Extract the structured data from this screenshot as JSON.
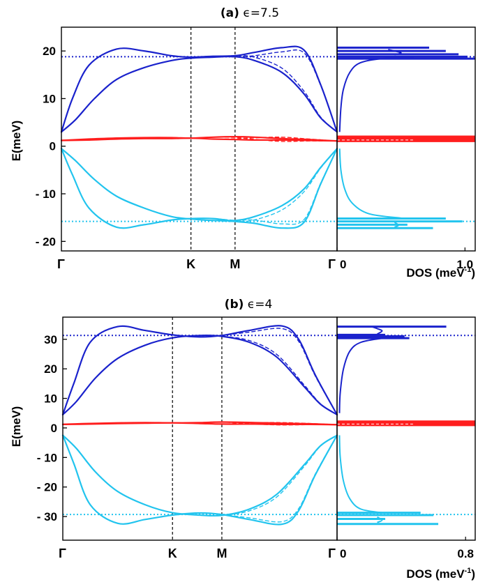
{
  "colors": {
    "upper_band": "#1a22cc",
    "flat_band": "#ff1e1e",
    "lower_band": "#22c4ee",
    "vline": "#000000"
  },
  "chart_data": [
    {
      "type": "line",
      "title_label": "(a)",
      "title_rest": " ϵ=7.5",
      "ylabel": "E(meV)",
      "ylim": [
        -22,
        25
      ],
      "yticks": [
        20,
        10,
        0,
        -10,
        -20
      ],
      "ytick_labels": [
        "20",
        "10",
        "0",
        "- 10",
        "- 20"
      ],
      "x_ticks": [
        {
          "pos": 0,
          "label": "Γ"
        },
        {
          "pos": 0.47,
          "label": "K"
        },
        {
          "pos": 0.63,
          "label": "M"
        },
        {
          "pos": 1,
          "label": "Γ"
        }
      ],
      "reference_levels": {
        "upper": 18.8,
        "lower": -15.8
      },
      "series": [
        {
          "band": "upper",
          "x": [
            0,
            0.04,
            0.1,
            0.2,
            0.3,
            0.4,
            0.47,
            0.55,
            0.63,
            0.7,
            0.8,
            0.88,
            0.94,
            1
          ],
          "y": [
            3,
            10,
            17,
            20.4,
            20,
            19,
            18.7,
            18.9,
            19,
            19.7,
            20.7,
            20.2,
            13,
            3
          ]
        },
        {
          "band": "upper",
          "x": [
            0,
            0.05,
            0.12,
            0.2,
            0.3,
            0.4,
            0.47,
            0.55,
            0.63,
            0.7,
            0.8,
            0.88,
            0.94,
            1
          ],
          "y": [
            3,
            5.5,
            10,
            14,
            16.5,
            18,
            18.5,
            18.7,
            18.8,
            18,
            15.5,
            11,
            6,
            3
          ]
        },
        {
          "band": "flat",
          "x": [
            0,
            0.1,
            0.2,
            0.3,
            0.4,
            0.47,
            0.55,
            0.63,
            0.7,
            0.8,
            0.9,
            1
          ],
          "y": [
            1.2,
            1.5,
            1.7,
            1.8,
            1.8,
            1.7,
            1.9,
            2,
            1.9,
            1.6,
            1.4,
            1.1
          ]
        },
        {
          "band": "flat",
          "x": [
            0,
            0.1,
            0.2,
            0.3,
            0.4,
            0.47,
            0.55,
            0.63,
            0.7,
            0.8,
            0.9,
            1
          ],
          "y": [
            1.2,
            1.3,
            1.5,
            1.6,
            1.6,
            1.7,
            1.5,
            1.4,
            1.3,
            1.3,
            1.2,
            1.1
          ]
        },
        {
          "band": "lower",
          "x": [
            0,
            0.04,
            0.1,
            0.2,
            0.3,
            0.4,
            0.47,
            0.55,
            0.63,
            0.7,
            0.8,
            0.88,
            0.94,
            1
          ],
          "y": [
            -0.5,
            -6,
            -13,
            -17,
            -16.5,
            -15.5,
            -15.2,
            -15.2,
            -15.8,
            -16.2,
            -17.2,
            -16,
            -8,
            -0.5
          ]
        },
        {
          "band": "lower",
          "x": [
            0,
            0.05,
            0.12,
            0.2,
            0.3,
            0.4,
            0.47,
            0.55,
            0.63,
            0.7,
            0.8,
            0.88,
            0.94,
            1
          ],
          "y": [
            -0.5,
            -3,
            -7,
            -10.5,
            -13,
            -14.8,
            -15.3,
            -15.6,
            -15.6,
            -14.8,
            -12.5,
            -9,
            -4.5,
            -0.5
          ]
        }
      ],
      "dos": {
        "xlabel": "DOS (meV",
        "xlabel_sup": "-1",
        "xlim": [
          0,
          1.08
        ],
        "xticks": [
          0,
          1.0
        ],
        "xtick_labels": [
          "0",
          "1.0"
        ],
        "bars": [
          {
            "band": "upper",
            "e": 20.7,
            "v": 0.72
          },
          {
            "band": "upper",
            "e": 20.0,
            "v": 0.85
          },
          {
            "band": "upper",
            "e": 19.3,
            "v": 0.95
          },
          {
            "band": "upper",
            "e": 18.8,
            "v": 1.02
          },
          {
            "band": "upper",
            "e": 18.4,
            "v": 1.08
          },
          {
            "band": "flat",
            "e": 1.8,
            "v": 1.08
          },
          {
            "band": "flat",
            "e": 1.3,
            "v": 1.08
          },
          {
            "band": "lower",
            "e": -15.2,
            "v": 0.85
          },
          {
            "band": "lower",
            "e": -15.8,
            "v": 0.98
          },
          {
            "band": "lower",
            "e": -16.5,
            "v": 0.55
          },
          {
            "band": "lower",
            "e": -17.2,
            "v": 0.75
          }
        ],
        "curves": [
          {
            "band": "upper",
            "points": [
              [
                0.02,
                3
              ],
              [
                0.03,
                8
              ],
              [
                0.05,
                12
              ],
              [
                0.1,
                15.5
              ],
              [
                0.18,
                17.5
              ],
              [
                0.35,
                18.4
              ],
              [
                0.6,
                18.7
              ]
            ]
          },
          {
            "band": "upper",
            "points": [
              [
                0.45,
                19.2
              ],
              [
                0.5,
                19.6
              ],
              [
                0.45,
                20.0
              ],
              [
                0.4,
                20.3
              ]
            ]
          },
          {
            "band": "lower",
            "points": [
              [
                0.02,
                -0.5
              ],
              [
                0.03,
                -5
              ],
              [
                0.06,
                -9
              ],
              [
                0.12,
                -12
              ],
              [
                0.25,
                -14.2
              ],
              [
                0.5,
                -15.1
              ]
            ]
          },
          {
            "band": "lower",
            "points": [
              [
                0.45,
                -16.0
              ],
              [
                0.48,
                -16.6
              ],
              [
                0.45,
                -17.0
              ]
            ]
          }
        ]
      }
    },
    {
      "type": "line",
      "title_label": "(b)",
      "title_rest": " ϵ=4",
      "ylabel": "E(meV)",
      "ylim": [
        -38,
        37.5
      ],
      "yticks": [
        30,
        20,
        10,
        0,
        -10,
        -20,
        -30
      ],
      "ytick_labels": [
        "30",
        "20",
        "10",
        "0",
        "- 10",
        "- 20",
        "- 30"
      ],
      "x_ticks": [
        {
          "pos": 0,
          "label": "Γ"
        },
        {
          "pos": 0.4,
          "label": "K"
        },
        {
          "pos": 0.58,
          "label": "M"
        },
        {
          "pos": 1,
          "label": "Γ"
        }
      ],
      "reference_levels": {
        "upper": 31.3,
        "lower": -29.3
      },
      "series": [
        {
          "band": "upper",
          "x": [
            0,
            0.04,
            0.1,
            0.2,
            0.3,
            0.4,
            0.5,
            0.58,
            0.68,
            0.8,
            0.86,
            0.92,
            1
          ],
          "y": [
            4.5,
            15,
            29,
            34.3,
            33,
            31.5,
            30.8,
            31.3,
            33,
            34.5,
            30,
            18,
            4.5
          ]
        },
        {
          "band": "upper",
          "x": [
            0,
            0.05,
            0.12,
            0.2,
            0.3,
            0.4,
            0.5,
            0.58,
            0.68,
            0.78,
            0.88,
            0.94,
            1
          ],
          "y": [
            4.5,
            9,
            17,
            23.5,
            28,
            30.5,
            31.3,
            31,
            29,
            24,
            14,
            8,
            4.5
          ]
        },
        {
          "band": "flat",
          "x": [
            0,
            0.1,
            0.2,
            0.3,
            0.4,
            0.5,
            0.58,
            0.7,
            0.8,
            0.9,
            1
          ],
          "y": [
            1.2,
            1.5,
            1.7,
            1.8,
            1.7,
            1.8,
            2,
            1.8,
            1.6,
            1.4,
            1.1
          ]
        },
        {
          "band": "flat",
          "x": [
            0,
            0.1,
            0.2,
            0.3,
            0.4,
            0.5,
            0.58,
            0.7,
            0.8,
            0.9,
            1
          ],
          "y": [
            1.2,
            1.3,
            1.5,
            1.6,
            1.7,
            1.5,
            1.3,
            1.3,
            1.2,
            1.2,
            1.1
          ]
        },
        {
          "band": "lower",
          "x": [
            0,
            0.04,
            0.1,
            0.2,
            0.3,
            0.4,
            0.5,
            0.58,
            0.68,
            0.8,
            0.86,
            0.92,
            1
          ],
          "y": [
            -2.5,
            -12,
            -26,
            -32.3,
            -31,
            -29.5,
            -28.8,
            -29.3,
            -31,
            -32.6,
            -28,
            -16,
            -2.5
          ]
        },
        {
          "band": "lower",
          "x": [
            0,
            0.05,
            0.12,
            0.2,
            0.3,
            0.4,
            0.5,
            0.58,
            0.68,
            0.78,
            0.88,
            0.94,
            1
          ],
          "y": [
            -2.5,
            -7,
            -15,
            -21.5,
            -26,
            -28.7,
            -29.5,
            -29.6,
            -27.5,
            -22.5,
            -12.5,
            -6,
            -2.5
          ]
        }
      ],
      "dos": {
        "xlabel": "DOS (meV",
        "xlabel_sup": "-1",
        "xlim": [
          0,
          0.86
        ],
        "xticks": [
          0,
          0.8
        ],
        "xtick_labels": [
          "0",
          "0.8"
        ],
        "bars": [
          {
            "band": "upper",
            "e": 34.3,
            "v": 0.68
          },
          {
            "band": "upper",
            "e": 31.5,
            "v": 0.3
          },
          {
            "band": "upper",
            "e": 31.0,
            "v": 0.42
          },
          {
            "band": "upper",
            "e": 30.4,
            "v": 0.45
          },
          {
            "band": "flat",
            "e": 1.8,
            "v": 0.86
          },
          {
            "band": "flat",
            "e": 1.3,
            "v": 0.86
          },
          {
            "band": "lower",
            "e": -28.7,
            "v": 0.52
          },
          {
            "band": "lower",
            "e": -29.5,
            "v": 0.6
          },
          {
            "band": "lower",
            "e": -30.8,
            "v": 0.3
          },
          {
            "band": "lower",
            "e": -32.5,
            "v": 0.63
          }
        ],
        "curves": [
          {
            "band": "upper",
            "points": [
              [
                0.015,
                5
              ],
              [
                0.02,
                12
              ],
              [
                0.04,
                20
              ],
              [
                0.08,
                26
              ],
              [
                0.15,
                29
              ],
              [
                0.3,
                30.5
              ]
            ]
          },
          {
            "band": "upper",
            "points": [
              [
                0.25,
                31.8
              ],
              [
                0.28,
                32.8
              ],
              [
                0.25,
                33.6
              ],
              [
                0.22,
                34.2
              ]
            ]
          },
          {
            "band": "lower",
            "points": [
              [
                0.015,
                -2.5
              ],
              [
                0.02,
                -10
              ],
              [
                0.04,
                -18
              ],
              [
                0.08,
                -24
              ],
              [
                0.15,
                -27.5
              ],
              [
                0.3,
                -28.8
              ]
            ]
          },
          {
            "band": "lower",
            "points": [
              [
                0.25,
                -30.2
              ],
              [
                0.28,
                -31.2
              ],
              [
                0.25,
                -32
              ]
            ]
          }
        ]
      }
    }
  ]
}
